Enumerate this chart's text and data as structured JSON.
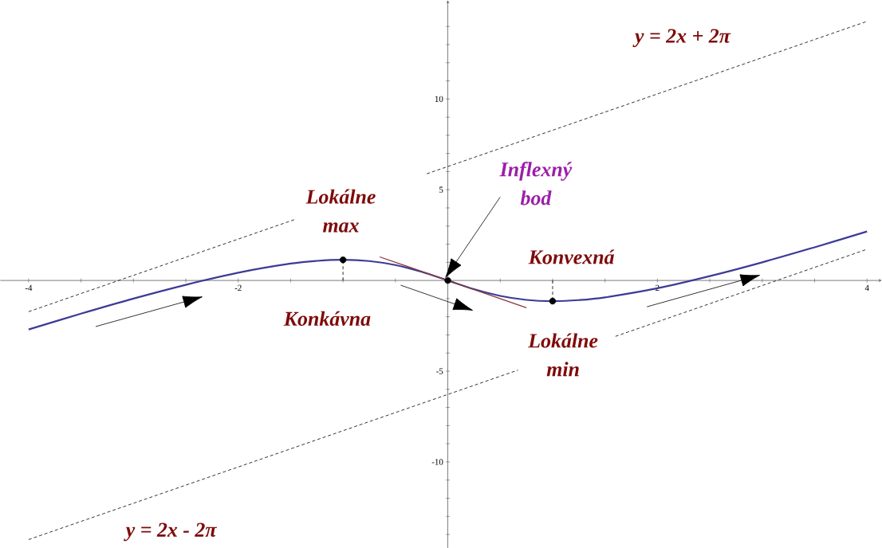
{
  "chart_data": {
    "type": "line",
    "xlim": [
      -4.27,
      4.14
    ],
    "ylim": [
      -14.74,
      15.44
    ],
    "xticks": [
      -4,
      {
        "value": -3.5,
        "label": null
      },
      {
        "value": -3,
        "label": null
      },
      {
        "value": -2.5,
        "label": null
      },
      -2,
      {
        "value": -1.5,
        "label": null
      },
      {
        "value": -1,
        "label": null
      },
      {
        "value": -0.5,
        "label": null
      },
      {
        "value": 0.5,
        "label": null
      },
      {
        "value": 1,
        "label": null
      },
      {
        "value": 1.5,
        "label": null
      },
      2,
      {
        "value": 2.5,
        "label": null
      },
      {
        "value": 3,
        "label": null
      },
      {
        "value": 3.5,
        "label": null
      },
      4
    ],
    "yticks": [
      {
        "value": -14,
        "label": null
      },
      {
        "value": -13,
        "label": null
      },
      {
        "value": -12,
        "label": null
      },
      {
        "value": -11,
        "label": null
      },
      -10,
      {
        "value": -9,
        "label": null
      },
      {
        "value": -8,
        "label": null
      },
      {
        "value": -7,
        "label": null
      },
      {
        "value": -6,
        "label": null
      },
      -5,
      {
        "value": -4,
        "label": null
      },
      {
        "value": -3,
        "label": null
      },
      {
        "value": -2,
        "label": null
      },
      {
        "value": -1,
        "label": null
      },
      {
        "value": 1,
        "label": null
      },
      {
        "value": 2,
        "label": null
      },
      {
        "value": 3,
        "label": null
      },
      {
        "value": 4,
        "label": null
      },
      5,
      {
        "value": 6,
        "label": null
      },
      {
        "value": 7,
        "label": null
      },
      {
        "value": 8,
        "label": null
      },
      {
        "value": 9,
        "label": null
      },
      10,
      {
        "value": 11,
        "label": null
      },
      {
        "value": 12,
        "label": null
      },
      {
        "value": 13,
        "label": null
      },
      {
        "value": 14,
        "label": null
      }
    ],
    "series": [
      {
        "color": "#3b3b98",
        "line_style": "solid",
        "marker": "none",
        "x": [
          -4,
          -3.5,
          -3,
          -2.5,
          -2,
          -1.5,
          -1.25,
          -1,
          -0.75,
          -0.5,
          -0.25,
          0,
          0.25,
          0.5,
          0.75,
          1,
          1.25,
          1.5,
          2,
          2.5,
          3,
          3.5,
          4
        ],
        "values": [
          -2.7,
          -1.83,
          -1.0,
          -0.24,
          0.43,
          0.93,
          1.08,
          1.14,
          1.07,
          0.85,
          0.48,
          0,
          -0.48,
          -0.85,
          -1.07,
          -1.14,
          -1.08,
          -0.93,
          -0.43,
          0.24,
          1.0,
          1.83,
          2.7
        ]
      },
      {
        "name": "y = 2x + 2π",
        "color": "#000000",
        "line_style": "dashed",
        "marker": "none",
        "x": [
          -4,
          -1.45,
          -1.4,
          -0.2,
          4
        ],
        "values": [
          -1.72,
          3.38,
          null,
          5.88,
          14.28
        ]
      },
      {
        "name": "y = 2x - 2π",
        "color": "#000000",
        "line_style": "dashed",
        "marker": "none",
        "x": [
          -4,
          0.67,
          1.0,
          1.6,
          4
        ],
        "values": [
          -14.28,
          -4.94,
          null,
          -3.08,
          1.72
        ]
      },
      {
        "color": "#8b3a3a",
        "line_style": "solid",
        "marker": "none",
        "x": [
          -0.65,
          0.75
        ],
        "values": [
          1.3,
          -1.5
        ]
      },
      {
        "type": "scatter",
        "color": "#000000",
        "marker": "circle",
        "x": [
          -1,
          0,
          1
        ],
        "values": [
          1.14,
          0,
          -1.14
        ]
      },
      {
        "color": "#000000",
        "line_style": "dashed",
        "marker": "none",
        "x": [
          -1,
          -1
        ],
        "values": [
          0,
          1.14
        ]
      },
      {
        "color": "#000000",
        "line_style": "dashed",
        "marker": "none",
        "x": [
          1,
          1
        ],
        "values": [
          0,
          -1.14
        ]
      }
    ],
    "annotations": [
      {
        "text": "Lokálne max",
        "x": -1,
        "y": 1.14
      },
      "Inflexný bod",
      {
        "text": "Lokálne min",
        "x": 1,
        "y": -1.14
      },
      "Konkávna",
      "Konvexná"
    ]
  }
}
